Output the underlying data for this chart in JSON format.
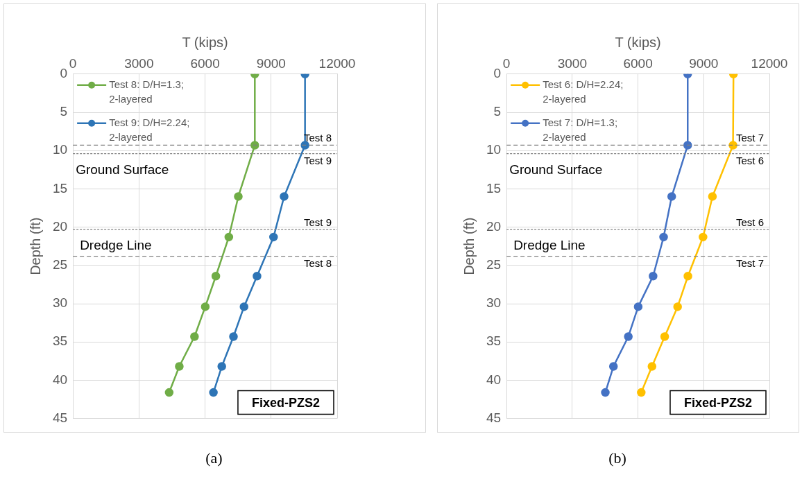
{
  "chart_data": [
    {
      "type": "line",
      "xlabel": "T (kips)",
      "ylabel": "Depth (ft)",
      "xlim": [
        0,
        12000
      ],
      "xticks": [
        0,
        3000,
        6000,
        9000,
        12000
      ],
      "ylim": [
        45,
        0
      ],
      "yticks": [
        0,
        5,
        10,
        15,
        20,
        25,
        30,
        35,
        40,
        45
      ],
      "grid": true,
      "legend": "top left",
      "marker": "circle",
      "line_style": "solid",
      "series": [
        {
          "name": "Test 8: D/H=1.3; 2-layered",
          "color": "#70ad47",
          "x": [
            8260,
            8260,
            7510,
            7080,
            6490,
            6010,
            5520,
            4830,
            4370
          ],
          "values": [
            0,
            9.3,
            16,
            21.3,
            26.4,
            30.4,
            34.3,
            38.2,
            41.6
          ]
        },
        {
          "name": "Test 9: D/H=2.24; 2-layered",
          "color": "#2e75b6",
          "x": [
            10540,
            10540,
            9590,
            9110,
            8360,
            7770,
            7290,
            6760,
            6380
          ],
          "values": [
            0,
            9.3,
            16,
            21.3,
            26.4,
            30.4,
            34.3,
            38.2,
            41.6
          ]
        }
      ],
      "ref_lines": [
        {
          "axis": "y",
          "value": 9.3,
          "label": "Test 8",
          "color": "#808080",
          "line_style": "dashed"
        },
        {
          "axis": "y",
          "value": 10.4,
          "label": "Test 9",
          "color": "#808080",
          "line_style": "dotted"
        },
        {
          "axis": "y",
          "value": 20.3,
          "label": "Test 9",
          "color": "#808080",
          "line_style": "dotted"
        },
        {
          "axis": "y",
          "value": 23.8,
          "label": "Test 8",
          "color": "#808080",
          "line_style": "dashed"
        }
      ],
      "annotations": [
        "Ground Surface",
        "Dredge Line",
        "Fixed-PZS2",
        "(a)"
      ]
    },
    {
      "type": "line",
      "xlabel": "T (kips)",
      "ylabel": "Depth (ft)",
      "xlim": [
        0,
        12000
      ],
      "xticks": [
        0,
        3000,
        6000,
        9000,
        12000
      ],
      "ylim": [
        45,
        0
      ],
      "yticks": [
        0,
        5,
        10,
        15,
        20,
        25,
        30,
        35,
        40,
        45
      ],
      "grid": true,
      "legend": "top left",
      "marker": "circle",
      "line_style": "solid",
      "series": [
        {
          "name": "Test 6: D/H=2.24; 2-layered",
          "color": "#ffc000",
          "x": [
            10360,
            10340,
            9400,
            8970,
            8280,
            7810,
            7220,
            6640,
            6150
          ],
          "values": [
            0,
            9.3,
            16,
            21.3,
            26.4,
            30.4,
            34.3,
            38.2,
            41.6
          ]
        },
        {
          "name": "Test 7: D/H=1.3; 2-layered",
          "color": "#4472c4",
          "x": [
            8270,
            8270,
            7540,
            7170,
            6690,
            6010,
            5560,
            4880,
            4510
          ],
          "values": [
            0,
            9.3,
            16,
            21.3,
            26.4,
            30.4,
            34.3,
            38.2,
            41.6
          ]
        }
      ],
      "ref_lines": [
        {
          "axis": "y",
          "value": 9.3,
          "label": "Test 7",
          "color": "#808080",
          "line_style": "dashed"
        },
        {
          "axis": "y",
          "value": 10.4,
          "label": "Test 6",
          "color": "#808080",
          "line_style": "dotted"
        },
        {
          "axis": "y",
          "value": 20.3,
          "label": "Test 6",
          "color": "#808080",
          "line_style": "dotted"
        },
        {
          "axis": "y",
          "value": 23.8,
          "label": "Test 7",
          "color": "#808080",
          "line_style": "dashed"
        }
      ],
      "annotations": [
        "Ground Surface",
        "Dredge Line",
        "Fixed-PZS2",
        "(b)"
      ]
    }
  ]
}
